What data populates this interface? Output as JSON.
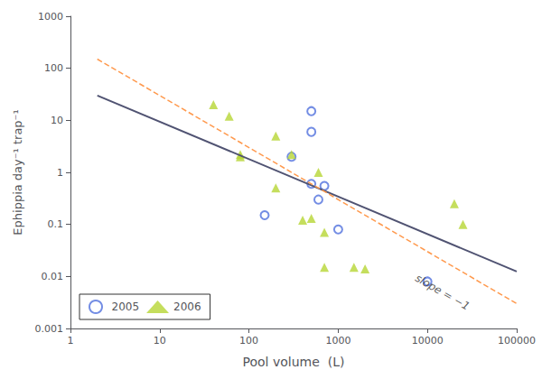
{
  "chart_data": {
    "type": "scatter",
    "xlabel": "Pool volume  (L)",
    "ylabel": "Ephippia day⁻¹ trap⁻¹",
    "log": true,
    "grid": false,
    "legend": "lower left",
    "xlim": [
      1,
      100000
    ],
    "ylim": [
      0.001,
      1000
    ],
    "xticks": [
      1,
      10,
      100,
      1000,
      10000,
      100000
    ],
    "yticks": [
      0.001,
      0.01,
      0.1,
      1,
      10,
      100,
      1000
    ],
    "series": [
      {
        "name": "2005",
        "type": "scatter",
        "marker": "open_circle",
        "x": [
          500,
          150,
          300,
          500,
          500,
          600,
          700,
          1000,
          10000
        ],
        "values": [
          15,
          0.15,
          2.0,
          6.0,
          0.6,
          0.3,
          0.55,
          0.08,
          0.008
        ]
      },
      {
        "name": "2006",
        "type": "scatter",
        "marker": "triangle",
        "x": [
          40,
          60,
          80,
          80,
          200,
          200,
          300,
          400,
          500,
          600,
          700,
          700,
          1500,
          2000,
          20000,
          25000
        ],
        "values": [
          20,
          12,
          2.2,
          2.0,
          5.0,
          0.5,
          2.2,
          0.12,
          0.13,
          1.0,
          0.07,
          0.015,
          0.015,
          0.014,
          0.25,
          0.1
        ]
      },
      {
        "type": "line",
        "line_style": "solid",
        "x": [
          2,
          100000
        ],
        "values": [
          30,
          0.0124126
        ]
      },
      {
        "type": "line",
        "line_style": "dashed",
        "x": [
          2,
          100000
        ],
        "values": [
          150,
          0.003
        ]
      }
    ],
    "annotations": [
      {
        "text": "slope = −1",
        "x": 8000,
        "y": 0.012
      }
    ]
  }
}
